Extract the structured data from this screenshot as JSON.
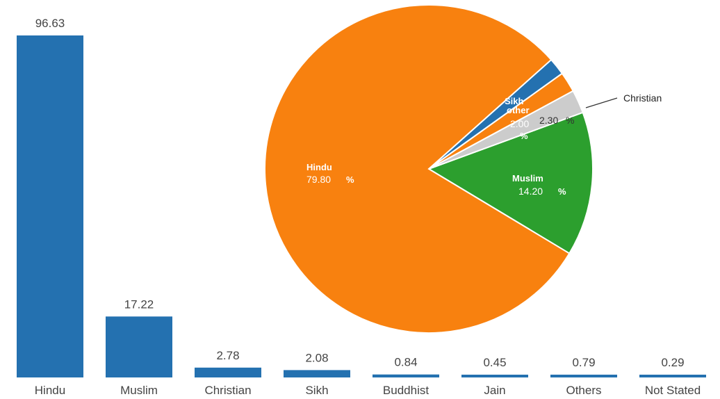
{
  "chart_data": [
    {
      "type": "bar",
      "categories": [
        "Hindu",
        "Muslim",
        "Christian",
        "Sikh",
        "Buddhist",
        "Jain",
        "Others",
        "Not Stated"
      ],
      "values": [
        96.63,
        17.22,
        2.78,
        2.08,
        0.84,
        0.45,
        0.79,
        0.29
      ],
      "value_labels": [
        "96.63",
        "17.22",
        "2.78",
        "2.08",
        "0.84",
        "0.45",
        "0.79",
        "0.29"
      ],
      "ylim": [
        0,
        100
      ],
      "grid": false,
      "color": "#2471b0"
    },
    {
      "type": "pie",
      "slices": [
        {
          "name": "Hindu",
          "value": 79.8,
          "label": "79.80",
          "unit": "%",
          "color": "#f8810f"
        },
        {
          "name": "Sikh",
          "value": 1.7,
          "label": "",
          "unit": "",
          "color": "#2471b0"
        },
        {
          "name": "other",
          "value": 2.0,
          "label": "2.00",
          "unit": "%",
          "color": "#f8810f"
        },
        {
          "name": "Christian",
          "value": 2.3,
          "label": "2.30",
          "unit": "%",
          "color": "#cccccc"
        },
        {
          "name": "Muslim",
          "value": 14.2,
          "label": "14.20",
          "unit": "%",
          "color": "#2c9f2e"
        }
      ]
    }
  ],
  "pie_callout": "Christian"
}
